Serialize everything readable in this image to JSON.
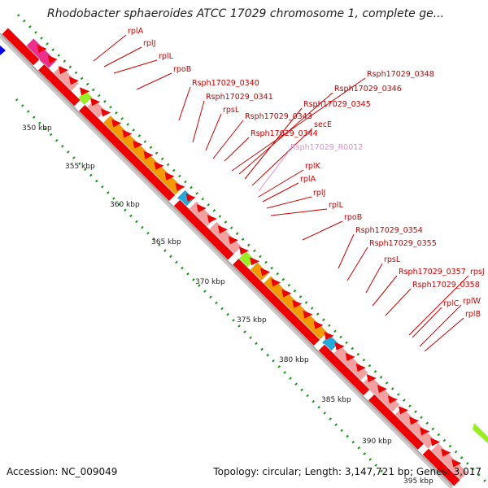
{
  "title": "Rhodobacter sphaeroides ATCC 17029 chromosome 1, complete ge...",
  "footer": {
    "accession": "Accession: NC_009049",
    "summary": "Topology: circular; Length: 3,147,721 bp; Genes: 3,017"
  },
  "colors": {
    "cds_red": "#ee0000",
    "pink_feature": "#f2a0a0",
    "orange_feature": "#f49a00",
    "teal_feature": "#22aadd",
    "magenta_feature": "#ee2e8c",
    "lime_feature": "#99ee22",
    "label_red": "#cc0000",
    "label_pink": "#ee88cc",
    "dotted_green": "#119911",
    "blue_marker": "#0000ee"
  },
  "ticks": [
    "350 kbp",
    "355 kbp",
    "360 kbp",
    "365 kbp",
    "370 kbp",
    "375 kbp",
    "380 kbp",
    "385 kbp",
    "390 kbp",
    "395 kbp"
  ],
  "genes": [
    {
      "name": "rplA",
      "color": "label_red"
    },
    {
      "name": "rplJ",
      "color": "label_red"
    },
    {
      "name": "rplL",
      "color": "label_red"
    },
    {
      "name": "rpoB",
      "color": "label_red"
    },
    {
      "name": "Rsph17029_0340",
      "color": "label_red"
    },
    {
      "name": "Rsph17029_0341",
      "color": "label_red"
    },
    {
      "name": "rpsL",
      "color": "label_red"
    },
    {
      "name": "Rsph17029_0343",
      "color": "label_red"
    },
    {
      "name": "Rsph17029_0344",
      "color": "label_red"
    },
    {
      "name": "Rsph17029_0348",
      "color": "label_red"
    },
    {
      "name": "Rsph17029_0346",
      "color": "label_red"
    },
    {
      "name": "Rsph17029_0345",
      "color": "label_red"
    },
    {
      "name": "secE",
      "color": "label_red"
    },
    {
      "name": "Rsph17029_R0012",
      "color": "label_pink"
    },
    {
      "name": "rplK",
      "color": "label_red"
    },
    {
      "name": "rplA",
      "color": "label_red"
    },
    {
      "name": "rplJ",
      "color": "label_red"
    },
    {
      "name": "rplL",
      "color": "label_red"
    },
    {
      "name": "rpoB",
      "color": "label_red"
    },
    {
      "name": "Rsph17029_0354",
      "color": "label_red"
    },
    {
      "name": "Rsph17029_0355",
      "color": "label_red"
    },
    {
      "name": "rpsL",
      "color": "label_red"
    },
    {
      "name": "Rsph17029_0357",
      "color": "label_red"
    },
    {
      "name": "rpsJ",
      "color": "label_red"
    },
    {
      "name": "Rsph17029_0358",
      "color": "label_red"
    },
    {
      "name": "rplC",
      "color": "label_red"
    },
    {
      "name": "rplW",
      "color": "label_red"
    },
    {
      "name": "rplB",
      "color": "label_red"
    }
  ]
}
